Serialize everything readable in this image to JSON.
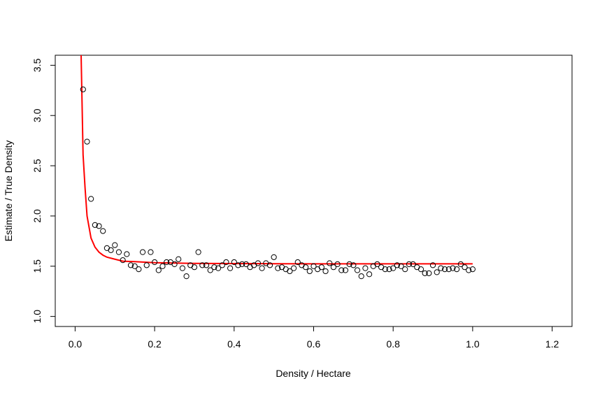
{
  "chart_data": {
    "type": "scatter",
    "xlabel": "Density / Hectare",
    "ylabel": "Estimate / True Density",
    "xlim": [
      -0.05,
      1.25
    ],
    "ylim": [
      0.9,
      3.6
    ],
    "x_ticks": [
      0.0,
      0.2,
      0.4,
      0.6,
      0.8,
      1.0,
      1.2
    ],
    "x_tick_labels": [
      "0.0",
      "0.2",
      "0.4",
      "0.6",
      "0.8",
      "1.0",
      "1.2"
    ],
    "y_ticks": [
      1.0,
      1.5,
      2.0,
      2.5,
      3.0,
      3.5
    ],
    "y_tick_labels": [
      "1.0",
      "1.5",
      "2.0",
      "2.5",
      "3.0",
      "3.5"
    ],
    "grid": false,
    "points": {
      "x": [
        0.02,
        0.03,
        0.04,
        0.05,
        0.06,
        0.07,
        0.08,
        0.09,
        0.1,
        0.11,
        0.12,
        0.13,
        0.14,
        0.15,
        0.16,
        0.17,
        0.18,
        0.19,
        0.2,
        0.21,
        0.22,
        0.23,
        0.24,
        0.25,
        0.26,
        0.27,
        0.28,
        0.29,
        0.3,
        0.31,
        0.32,
        0.33,
        0.34,
        0.35,
        0.36,
        0.37,
        0.38,
        0.39,
        0.4,
        0.41,
        0.42,
        0.43,
        0.44,
        0.45,
        0.46,
        0.47,
        0.48,
        0.49,
        0.5,
        0.51,
        0.52,
        0.53,
        0.54,
        0.55,
        0.56,
        0.57,
        0.58,
        0.59,
        0.6,
        0.61,
        0.62,
        0.63,
        0.64,
        0.65,
        0.66,
        0.67,
        0.68,
        0.69,
        0.7,
        0.71,
        0.72,
        0.73,
        0.74,
        0.75,
        0.76,
        0.77,
        0.78,
        0.79,
        0.8,
        0.81,
        0.82,
        0.83,
        0.84,
        0.85,
        0.86,
        0.87,
        0.88,
        0.89,
        0.9,
        0.91,
        0.92,
        0.93,
        0.94,
        0.95,
        0.96,
        0.97,
        0.98,
        0.99,
        1.0
      ],
      "y": [
        3.26,
        2.74,
        2.17,
        1.91,
        1.9,
        1.85,
        1.68,
        1.66,
        1.71,
        1.64,
        1.56,
        1.62,
        1.51,
        1.5,
        1.47,
        1.64,
        1.51,
        1.64,
        1.54,
        1.46,
        1.5,
        1.54,
        1.54,
        1.52,
        1.57,
        1.48,
        1.4,
        1.51,
        1.49,
        1.64,
        1.51,
        1.51,
        1.46,
        1.49,
        1.48,
        1.51,
        1.54,
        1.48,
        1.54,
        1.51,
        1.52,
        1.52,
        1.49,
        1.51,
        1.53,
        1.48,
        1.53,
        1.51,
        1.59,
        1.48,
        1.49,
        1.47,
        1.45,
        1.48,
        1.54,
        1.51,
        1.49,
        1.45,
        1.5,
        1.47,
        1.49,
        1.45,
        1.53,
        1.49,
        1.52,
        1.46,
        1.46,
        1.52,
        1.51,
        1.46,
        1.4,
        1.48,
        1.42,
        1.5,
        1.52,
        1.49,
        1.47,
        1.47,
        1.48,
        1.51,
        1.5,
        1.47,
        1.52,
        1.52,
        1.49,
        1.47,
        1.43,
        1.43,
        1.51,
        1.44,
        1.48,
        1.47,
        1.47,
        1.48,
        1.47,
        1.52,
        1.49,
        1.46,
        1.47
      ]
    },
    "series": [
      {
        "type": "line",
        "color": "#ff0000",
        "x": [
          0.015,
          0.02,
          0.025,
          0.03,
          0.035,
          0.04,
          0.05,
          0.06,
          0.07,
          0.08,
          0.1,
          0.12,
          0.15,
          0.2,
          0.3,
          0.4,
          0.5,
          0.6,
          0.7,
          0.8,
          0.9,
          1.0
        ],
        "y": [
          3.62,
          2.61,
          2.28,
          2.0,
          1.89,
          1.78,
          1.69,
          1.64,
          1.61,
          1.59,
          1.57,
          1.55,
          1.545,
          1.535,
          1.528,
          1.526,
          1.525,
          1.524,
          1.524,
          1.524,
          1.524,
          1.524
        ]
      }
    ]
  }
}
